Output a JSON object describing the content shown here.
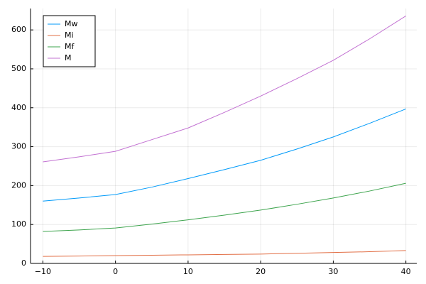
{
  "chart_data": {
    "type": "line",
    "x": [
      -10,
      -5,
      0,
      5,
      10,
      15,
      20,
      25,
      30,
      35,
      40
    ],
    "series": [
      {
        "name": "Mw",
        "color": "#009af9",
        "values": [
          160,
          168,
          177,
          196,
          218,
          241,
          265,
          294,
          325,
          360,
          397
        ]
      },
      {
        "name": "Mi",
        "color": "#e26f46",
        "values": [
          18,
          19,
          20,
          21,
          22,
          23,
          24,
          26,
          28,
          30,
          33
        ]
      },
      {
        "name": "Mf",
        "color": "#3da44d",
        "values": [
          82,
          86,
          91,
          101,
          112,
          124,
          137,
          152,
          168,
          186,
          206
        ]
      },
      {
        "name": "M",
        "color": "#c271d2",
        "values": [
          261,
          274,
          288,
          318,
          348,
          388,
          430,
          475,
          522,
          577,
          636
        ]
      }
    ],
    "xlim": [
      -11.7,
      41.5
    ],
    "ylim": [
      0,
      655
    ],
    "xticks": [
      {
        "value": -10,
        "label": "−10"
      },
      0,
      10,
      20,
      30,
      40
    ],
    "yticks": [
      0,
      100,
      200,
      300,
      400,
      500,
      600
    ],
    "grid": true,
    "legend": "top-left"
  }
}
